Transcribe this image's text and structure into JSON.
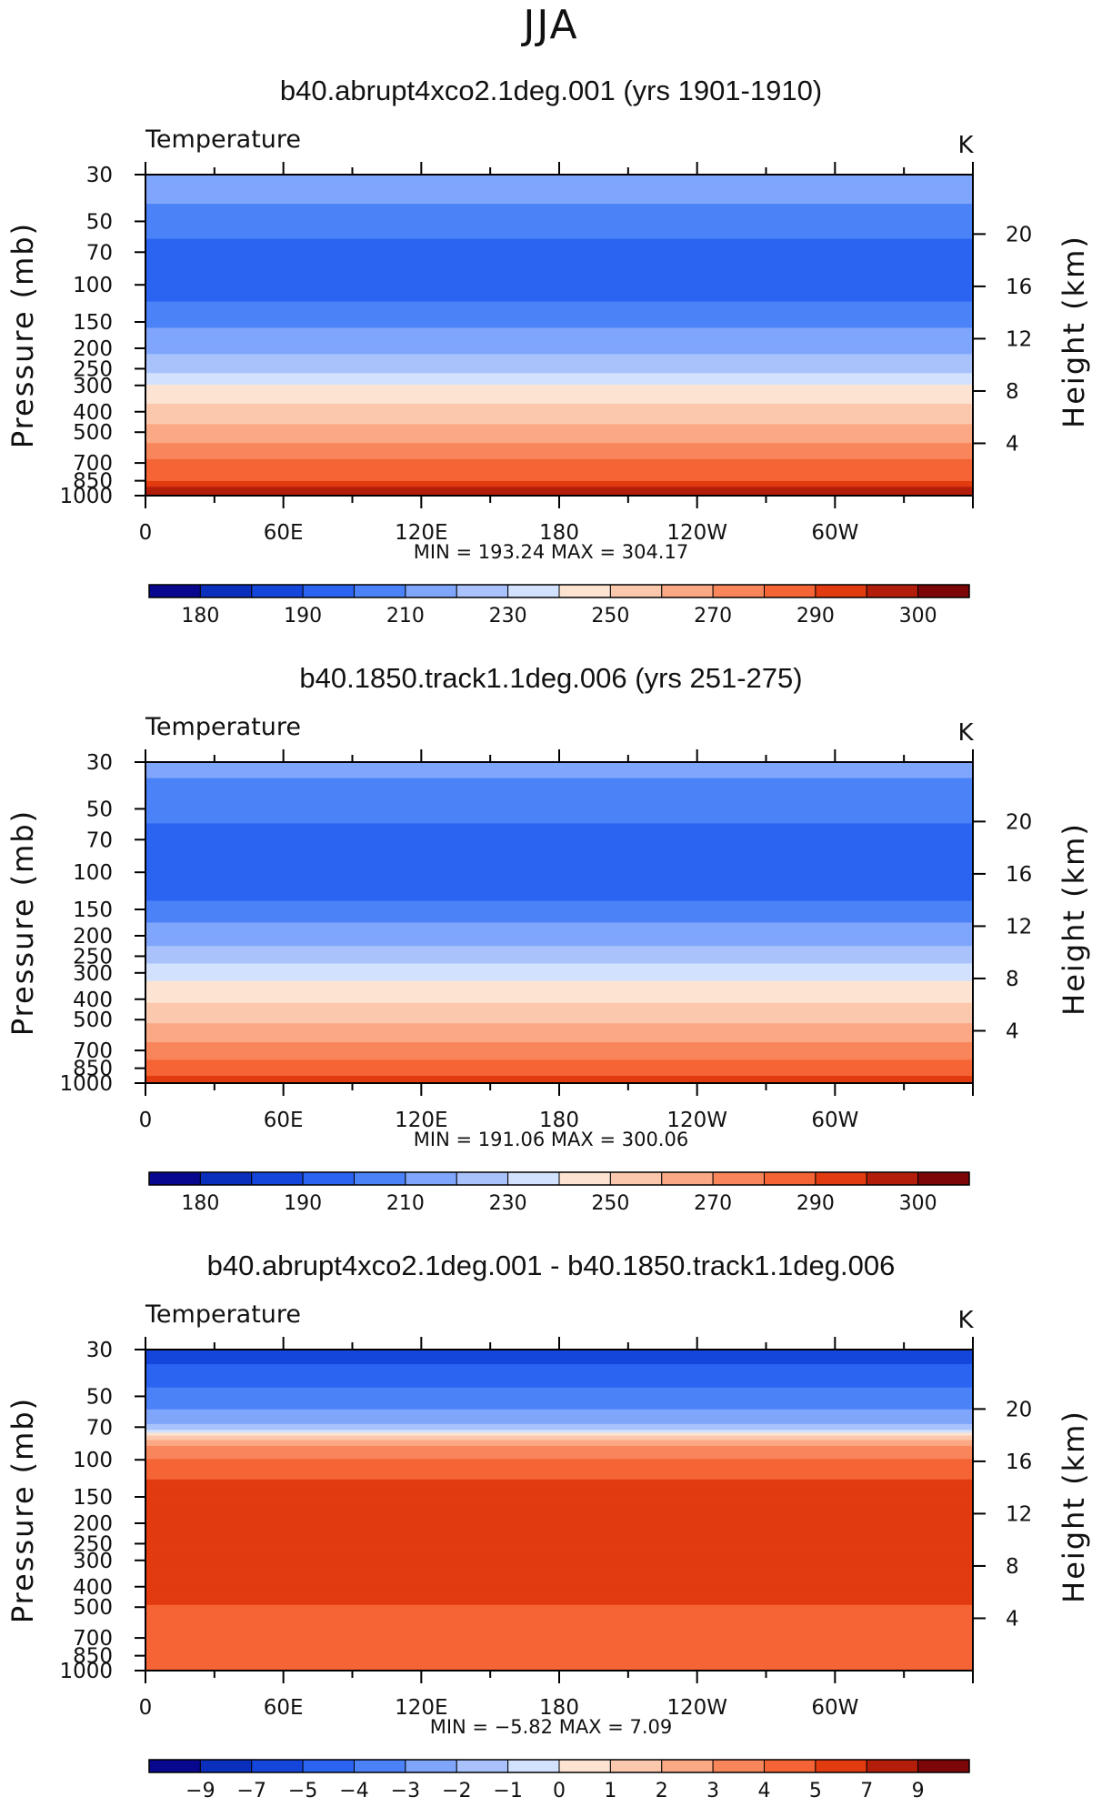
{
  "main_title": "JJA",
  "chart_data": [
    {
      "type": "heatmap",
      "title": "b40.abrupt4xco2.1deg.001 (yrs 1901-1910)",
      "variable_label": "Temperature",
      "units": "K",
      "ylabel_left": "Pressure (mb)",
      "ylabel_right": "Height (km)",
      "x_ticks": [
        "0",
        "60E",
        "120E",
        "180",
        "120W",
        "60W"
      ],
      "pressure_ticks": [
        "30",
        "50",
        "70",
        "100",
        "150",
        "200",
        "250",
        "300",
        "400",
        "500",
        "700",
        "850",
        "1000"
      ],
      "height_ticks": [
        "20",
        "16",
        "12",
        "8",
        "4"
      ],
      "stats": "MIN = 193.24   MAX = 304.17",
      "min": 193.24,
      "max": 304.17,
      "colorbar_labels": [
        "180",
        "190",
        "210",
        "230",
        "250",
        "270",
        "290",
        "300"
      ],
      "colorbar_levels": [
        175,
        180,
        185,
        190,
        200,
        210,
        220,
        230,
        240,
        250,
        260,
        270,
        280,
        290,
        295,
        300,
        305
      ],
      "profile": [
        {
          "p": 30,
          "v": 215
        },
        {
          "p": 40,
          "v": 211
        },
        {
          "p": 50,
          "v": 205
        },
        {
          "p": 70,
          "v": 196
        },
        {
          "p": 100,
          "v": 196
        },
        {
          "p": 130,
          "v": 202
        },
        {
          "p": 150,
          "v": 208
        },
        {
          "p": 200,
          "v": 217
        },
        {
          "p": 250,
          "v": 227
        },
        {
          "p": 300,
          "v": 240
        },
        {
          "p": 400,
          "v": 254
        },
        {
          "p": 500,
          "v": 264
        },
        {
          "p": 600,
          "v": 273
        },
        {
          "p": 700,
          "v": 282
        },
        {
          "p": 850,
          "v": 290
        },
        {
          "p": 925,
          "v": 296
        },
        {
          "p": 1000,
          "v": 300
        }
      ]
    },
    {
      "type": "heatmap",
      "title": "b40.1850.track1.1deg.006 (yrs 251-275)",
      "variable_label": "Temperature",
      "units": "K",
      "ylabel_left": "Pressure (mb)",
      "ylabel_right": "Height (km)",
      "x_ticks": [
        "0",
        "60E",
        "120E",
        "180",
        "120W",
        "60W"
      ],
      "pressure_ticks": [
        "30",
        "50",
        "70",
        "100",
        "150",
        "200",
        "250",
        "300",
        "400",
        "500",
        "700",
        "850",
        "1000"
      ],
      "height_ticks": [
        "20",
        "16",
        "12",
        "8",
        "4"
      ],
      "stats": "MIN = 191.06   MAX = 300.06",
      "min": 191.06,
      "max": 300.06,
      "colorbar_labels": [
        "180",
        "190",
        "210",
        "230",
        "250",
        "270",
        "290",
        "300"
      ],
      "colorbar_levels": [
        175,
        180,
        185,
        190,
        200,
        210,
        220,
        230,
        240,
        250,
        260,
        270,
        280,
        290,
        295,
        300,
        305
      ],
      "profile": [
        {
          "p": 30,
          "v": 212
        },
        {
          "p": 50,
          "v": 206
        },
        {
          "p": 60,
          "v": 199
        },
        {
          "p": 80,
          "v": 196
        },
        {
          "p": 100,
          "v": 195
        },
        {
          "p": 130,
          "v": 197
        },
        {
          "p": 150,
          "v": 205
        },
        {
          "p": 200,
          "v": 215
        },
        {
          "p": 250,
          "v": 225
        },
        {
          "p": 300,
          "v": 236
        },
        {
          "p": 400,
          "v": 248
        },
        {
          "p": 500,
          "v": 258
        },
        {
          "p": 600,
          "v": 266
        },
        {
          "p": 700,
          "v": 276
        },
        {
          "p": 850,
          "v": 284
        },
        {
          "p": 925,
          "v": 290
        },
        {
          "p": 1000,
          "v": 294
        }
      ]
    },
    {
      "type": "heatmap",
      "title": "b40.abrupt4xco2.1deg.001 - b40.1850.track1.1deg.006",
      "variable_label": "Temperature",
      "units": "K",
      "ylabel_left": "Pressure (mb)",
      "ylabel_right": "Height (km)",
      "x_ticks": [
        "0",
        "60E",
        "120E",
        "180",
        "120W",
        "60W"
      ],
      "pressure_ticks": [
        "30",
        "50",
        "70",
        "100",
        "150",
        "200",
        "250",
        "300",
        "400",
        "500",
        "700",
        "850",
        "1000"
      ],
      "height_ticks": [
        "20",
        "16",
        "12",
        "8",
        "4"
      ],
      "stats": "MIN =     −5.82   MAX =     7.09",
      "min": -5.82,
      "max": 7.09,
      "colorbar_labels": [
        "−9",
        "−7",
        "−5",
        "−4",
        "−3",
        "−2",
        "−1",
        "0",
        "1",
        "2",
        "3",
        "4",
        "5",
        "7",
        "9"
      ],
      "colorbar_levels": [
        -11,
        -9,
        -7,
        -5,
        -4,
        -3,
        -2,
        -1,
        0,
        1,
        2,
        3,
        4,
        5,
        7,
        9,
        11
      ],
      "profile": [
        {
          "p": 30,
          "v": -5.5
        },
        {
          "p": 35,
          "v": -5.0
        },
        {
          "p": 40,
          "v": -4.5
        },
        {
          "p": 50,
          "v": -3.6
        },
        {
          "p": 60,
          "v": -2.8
        },
        {
          "p": 70,
          "v": -1.8
        },
        {
          "p": 75,
          "v": 0.5
        },
        {
          "p": 80,
          "v": 2.0
        },
        {
          "p": 90,
          "v": 3.5
        },
        {
          "p": 110,
          "v": 4.5
        },
        {
          "p": 140,
          "v": 5.5
        },
        {
          "p": 450,
          "v": 5.5
        },
        {
          "p": 520,
          "v": 4.6
        },
        {
          "p": 1000,
          "v": 4.5
        }
      ]
    }
  ]
}
